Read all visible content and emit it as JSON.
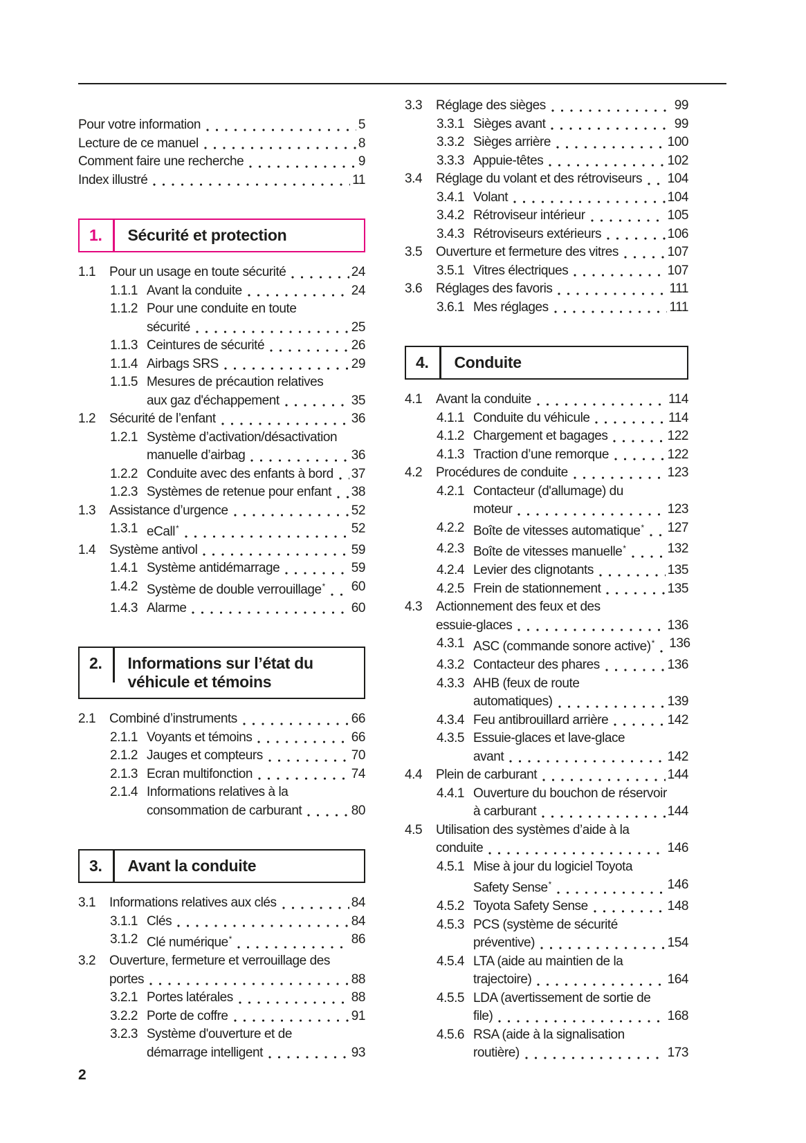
{
  "page": {
    "footer_page_number": "2",
    "accent_color": "#e3077e",
    "text_color": "#1d1d1b"
  },
  "columns": {
    "left": [
      {
        "type": "toc-list",
        "entries": [
          {
            "level": 0,
            "lines": [
              "Pour votre information"
            ],
            "page": "5"
          },
          {
            "level": 0,
            "lines": [
              "Lecture de ce manuel"
            ],
            "page": "8"
          },
          {
            "level": 0,
            "lines": [
              "Comment faire une recherche"
            ],
            "page": "9"
          },
          {
            "level": 0,
            "lines": [
              "Index illustré"
            ],
            "page": "11"
          }
        ]
      },
      {
        "type": "section-header",
        "number": "1.",
        "title_lines": [
          "Sécurité et protection"
        ],
        "accent": true
      },
      {
        "type": "toc-list",
        "entries": [
          {
            "num": "1.1",
            "level": 1,
            "lines": [
              "Pour un usage en toute sécurité"
            ],
            "page": "24"
          },
          {
            "num": "1.1.1",
            "level": 2,
            "lines": [
              "Avant la conduite"
            ],
            "page": "24"
          },
          {
            "num": "1.1.2",
            "level": 2,
            "lines": [
              "Pour une conduite en toute",
              "sécurité"
            ],
            "page": "25"
          },
          {
            "num": "1.1.3",
            "level": 2,
            "lines": [
              "Ceintures de sécurité"
            ],
            "page": "26"
          },
          {
            "num": "1.1.4",
            "level": 2,
            "lines": [
              "Airbags SRS"
            ],
            "page": "29"
          },
          {
            "num": "1.1.5",
            "level": 2,
            "lines": [
              "Mesures de précaution relatives",
              "aux gaz d'échappement"
            ],
            "page": "35"
          },
          {
            "num": "1.2",
            "level": 1,
            "lines": [
              "Sécurité de l’enfant"
            ],
            "page": "36"
          },
          {
            "num": "1.2.1",
            "level": 2,
            "lines": [
              "Système d’activation/désactivation",
              "manuelle d’airbag"
            ],
            "page": "36"
          },
          {
            "num": "1.2.2",
            "level": 2,
            "lines": [
              "Conduite avec des enfants à bord"
            ],
            "page": "37"
          },
          {
            "num": "1.2.3",
            "level": 2,
            "lines": [
              "Systèmes de retenue pour enfant"
            ],
            "page": "38"
          },
          {
            "num": "1.3",
            "level": 1,
            "lines": [
              "Assistance d’urgence"
            ],
            "page": "52"
          },
          {
            "num": "1.3.1",
            "level": 2,
            "lines": [
              "eCall*"
            ],
            "page": "52"
          },
          {
            "num": "1.4",
            "level": 1,
            "lines": [
              "Système antivol"
            ],
            "page": "59"
          },
          {
            "num": "1.4.1",
            "level": 2,
            "lines": [
              "Système antidémarrage"
            ],
            "page": "59"
          },
          {
            "num": "1.4.2",
            "level": 2,
            "lines": [
              "Système de double verrouillage*"
            ],
            "page": "60"
          },
          {
            "num": "1.4.3",
            "level": 2,
            "lines": [
              "Alarme"
            ],
            "page": "60"
          }
        ]
      },
      {
        "type": "section-header",
        "number": "2.",
        "title_lines": [
          "Informations sur l’état du",
          "véhicule et témoins"
        ],
        "accent": false
      },
      {
        "type": "toc-list",
        "entries": [
          {
            "num": "2.1",
            "level": 1,
            "lines": [
              "Combiné d’instruments"
            ],
            "page": "66"
          },
          {
            "num": "2.1.1",
            "level": 2,
            "lines": [
              "Voyants et témoins"
            ],
            "page": "66"
          },
          {
            "num": "2.1.2",
            "level": 2,
            "lines": [
              "Jauges et compteurs"
            ],
            "page": "70"
          },
          {
            "num": "2.1.3",
            "level": 2,
            "lines": [
              "Ecran multifonction"
            ],
            "page": "74"
          },
          {
            "num": "2.1.4",
            "level": 2,
            "lines": [
              "Informations relatives à la",
              "consommation de carburant"
            ],
            "page": "80"
          }
        ]
      },
      {
        "type": "section-header",
        "number": "3.",
        "title_lines": [
          "Avant la conduite"
        ],
        "accent": false
      },
      {
        "type": "toc-list",
        "entries": [
          {
            "num": "3.1",
            "level": 1,
            "lines": [
              "Informations relatives aux clés"
            ],
            "page": "84"
          },
          {
            "num": "3.1.1",
            "level": 2,
            "lines": [
              "Clés"
            ],
            "page": "84"
          },
          {
            "num": "3.1.2",
            "level": 2,
            "lines": [
              "Clé numérique*"
            ],
            "page": "86"
          },
          {
            "num": "3.2",
            "level": 1,
            "lines": [
              "Ouverture, fermeture et verrouillage des",
              "portes"
            ],
            "page": "88"
          },
          {
            "num": "3.2.1",
            "level": 2,
            "lines": [
              "Portes latérales"
            ],
            "page": "88"
          },
          {
            "num": "3.2.2",
            "level": 2,
            "lines": [
              "Porte de coffre"
            ],
            "page": "91"
          },
          {
            "num": "3.2.3",
            "level": 2,
            "lines": [
              "Système d'ouverture et de",
              "démarrage intelligent"
            ],
            "page": "93"
          }
        ]
      }
    ],
    "right": [
      {
        "type": "toc-list",
        "entries": [
          {
            "num": "3.3",
            "level": 1,
            "lines": [
              "Réglage des sièges"
            ],
            "page": "99"
          },
          {
            "num": "3.3.1",
            "level": 2,
            "lines": [
              "Sièges avant"
            ],
            "page": "99"
          },
          {
            "num": "3.3.2",
            "level": 2,
            "lines": [
              "Sièges arrière"
            ],
            "page": "100"
          },
          {
            "num": "3.3.3",
            "level": 2,
            "lines": [
              "Appuie-têtes"
            ],
            "page": "102"
          },
          {
            "num": "3.4",
            "level": 1,
            "lines": [
              "Réglage du volant et des rétroviseurs"
            ],
            "page": "104"
          },
          {
            "num": "3.4.1",
            "level": 2,
            "lines": [
              "Volant"
            ],
            "page": "104"
          },
          {
            "num": "3.4.2",
            "level": 2,
            "lines": [
              "Rétroviseur intérieur"
            ],
            "page": "105"
          },
          {
            "num": "3.4.3",
            "level": 2,
            "lines": [
              "Rétroviseurs extérieurs"
            ],
            "page": "106"
          },
          {
            "num": "3.5",
            "level": 1,
            "lines": [
              "Ouverture et fermeture des vitres"
            ],
            "page": "107"
          },
          {
            "num": "3.5.1",
            "level": 2,
            "lines": [
              "Vitres électriques"
            ],
            "page": "107"
          },
          {
            "num": "3.6",
            "level": 1,
            "lines": [
              "Réglages des favoris"
            ],
            "page": "111"
          },
          {
            "num": "3.6.1",
            "level": 2,
            "lines": [
              "Mes réglages"
            ],
            "page": "111"
          }
        ]
      },
      {
        "type": "section-header",
        "number": "4.",
        "title_lines": [
          "Conduite"
        ],
        "accent": false
      },
      {
        "type": "toc-list",
        "entries": [
          {
            "num": "4.1",
            "level": 1,
            "lines": [
              "Avant la conduite"
            ],
            "page": "114"
          },
          {
            "num": "4.1.1",
            "level": 2,
            "lines": [
              "Conduite du véhicule"
            ],
            "page": "114"
          },
          {
            "num": "4.1.2",
            "level": 2,
            "lines": [
              "Chargement et bagages"
            ],
            "page": "122"
          },
          {
            "num": "4.1.3",
            "level": 2,
            "lines": [
              "Traction d’une remorque"
            ],
            "page": "122"
          },
          {
            "num": "4.2",
            "level": 1,
            "lines": [
              "Procédures de conduite"
            ],
            "page": "123"
          },
          {
            "num": "4.2.1",
            "level": 2,
            "lines": [
              "Contacteur (d'allumage) du",
              "moteur"
            ],
            "page": "123"
          },
          {
            "num": "4.2.2",
            "level": 2,
            "lines": [
              "Boîte de vitesses automatique*"
            ],
            "page": "127"
          },
          {
            "num": "4.2.3",
            "level": 2,
            "lines": [
              "Boîte de vitesses manuelle*"
            ],
            "page": "132"
          },
          {
            "num": "4.2.4",
            "level": 2,
            "lines": [
              "Levier des clignotants"
            ],
            "page": "135"
          },
          {
            "num": "4.2.5",
            "level": 2,
            "lines": [
              "Frein de stationnement"
            ],
            "page": "135"
          },
          {
            "num": "4.3",
            "level": 1,
            "lines": [
              "Actionnement des feux et des",
              "essuie-glaces"
            ],
            "page": "136"
          },
          {
            "num": "4.3.1",
            "level": 2,
            "lines": [
              "ASC (commande sonore active)*"
            ],
            "page": "136"
          },
          {
            "num": "4.3.2",
            "level": 2,
            "lines": [
              "Contacteur des phares"
            ],
            "page": "136"
          },
          {
            "num": "4.3.3",
            "level": 2,
            "lines": [
              "AHB (feux de route",
              "automatiques)"
            ],
            "page": "139"
          },
          {
            "num": "4.3.4",
            "level": 2,
            "lines": [
              "Feu antibrouillard arrière"
            ],
            "page": "142"
          },
          {
            "num": "4.3.5",
            "level": 2,
            "lines": [
              "Essuie-glaces et lave-glace",
              "avant"
            ],
            "page": "142"
          },
          {
            "num": "4.4",
            "level": 1,
            "lines": [
              "Plein de carburant"
            ],
            "page": "144"
          },
          {
            "num": "4.4.1",
            "level": 2,
            "lines": [
              "Ouverture du bouchon de réservoir",
              "à carburant"
            ],
            "page": "144"
          },
          {
            "num": "4.5",
            "level": 1,
            "lines": [
              "Utilisation des systèmes d’aide à la",
              "conduite"
            ],
            "page": "146"
          },
          {
            "num": "4.5.1",
            "level": 2,
            "lines": [
              "Mise à jour du logiciel Toyota",
              "Safety Sense*"
            ],
            "page": "146"
          },
          {
            "num": "4.5.2",
            "level": 2,
            "lines": [
              "Toyota Safety Sense"
            ],
            "page": "148"
          },
          {
            "num": "4.5.3",
            "level": 2,
            "lines": [
              "PCS (système de sécurité",
              "préventive)"
            ],
            "page": "154"
          },
          {
            "num": "4.5.4",
            "level": 2,
            "lines": [
              "LTA (aide au maintien de la",
              "trajectoire)"
            ],
            "page": "164"
          },
          {
            "num": "4.5.5",
            "level": 2,
            "lines": [
              "LDA (avertissement de sortie de",
              "file)"
            ],
            "page": "168"
          },
          {
            "num": "4.5.6",
            "level": 2,
            "lines": [
              "RSA (aide à la signalisation",
              "routière)"
            ],
            "page": "173"
          }
        ]
      }
    ]
  }
}
